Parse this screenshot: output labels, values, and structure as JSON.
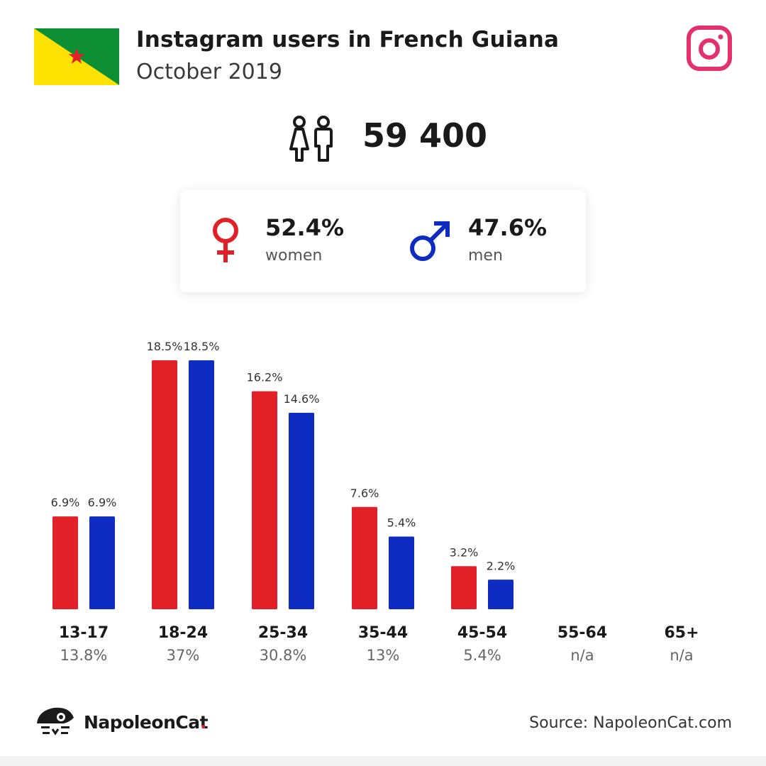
{
  "header": {
    "title": "Instagram users in French Guiana",
    "subtitle": "October 2019"
  },
  "total_users": "59 400",
  "gender": {
    "women_pct": "52.4%",
    "women_label": "women",
    "men_pct": "47.6%",
    "men_label": "men"
  },
  "colors": {
    "women": "#e12027",
    "men": "#0f2cc2",
    "instagram": "#e4306c",
    "flag_green": "#0f8f34",
    "flag_yellow": "#fde100"
  },
  "icons": [
    "french-guiana-flag-icon",
    "instagram-icon",
    "people-icon",
    "female-symbol-icon",
    "male-symbol-icon",
    "napoleoncat-logo-icon"
  ],
  "chart_data": {
    "type": "bar",
    "categories": [
      "13-17",
      "18-24",
      "25-34",
      "35-44",
      "45-54",
      "55-64",
      "65+"
    ],
    "group_totals": [
      "13.8%",
      "37%",
      "30.8%",
      "13%",
      "5.4%",
      "n/a",
      "n/a"
    ],
    "series": [
      {
        "name": "women",
        "values": [
          6.9,
          18.5,
          16.2,
          7.6,
          3.2,
          null,
          null
        ],
        "labels": [
          "6.9%",
          "18.5%",
          "16.2%",
          "7.6%",
          "3.2%",
          "",
          ""
        ]
      },
      {
        "name": "men",
        "values": [
          6.9,
          18.5,
          14.6,
          5.4,
          2.2,
          null,
          null
        ],
        "labels": [
          "6.9%",
          "18.5%",
          "14.6%",
          "5.4%",
          "2.2%",
          "",
          ""
        ]
      }
    ],
    "ylim": [
      0,
      18.5
    ],
    "grid": false,
    "xlabel": "",
    "ylabel": ""
  },
  "footer": {
    "brand_name": "NapoleonCat",
    "brand_dot": ".",
    "source": "Source: NapoleonCat.com"
  }
}
